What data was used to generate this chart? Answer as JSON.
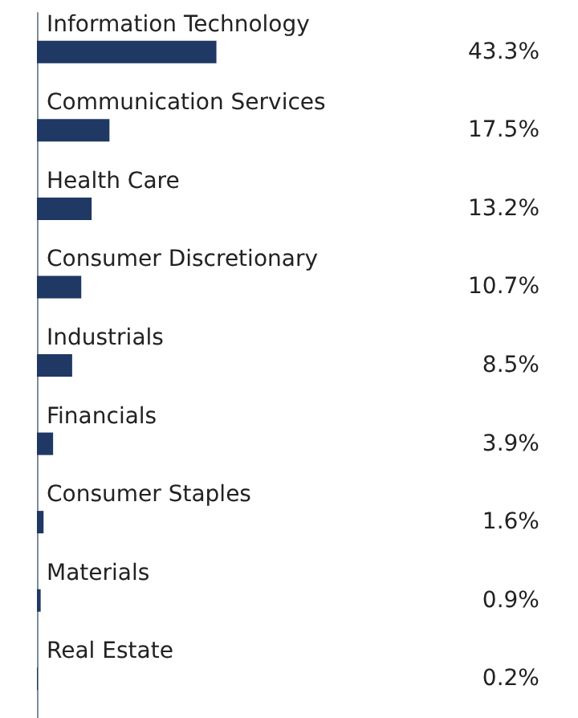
{
  "chart_data": {
    "type": "bar",
    "orientation": "horizontal",
    "categories": [
      "Information Technology",
      "Communication Services",
      "Health Care",
      "Consumer Discretionary",
      "Industrials",
      "Financials",
      "Consumer Staples",
      "Materials",
      "Real Estate"
    ],
    "values": [
      43.3,
      17.5,
      13.2,
      10.7,
      8.5,
      3.9,
      1.6,
      0.9,
      0.2
    ],
    "value_labels": [
      "43.3%",
      "17.5%",
      "13.2%",
      "10.7%",
      "8.5%",
      "3.9%",
      "1.6%",
      "0.9%",
      "0.2%"
    ],
    "color": "#1f3864"
  }
}
